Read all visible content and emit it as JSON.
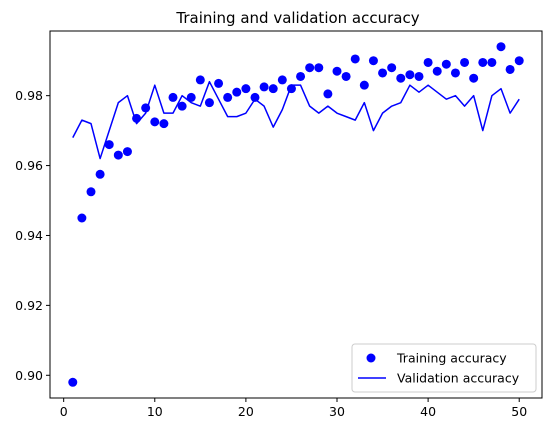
{
  "chart_data": {
    "type": "line",
    "title": "Training and validation accuracy",
    "xlabel": "",
    "ylabel": "",
    "xlim": [
      -1.5,
      52.5
    ],
    "ylim": [
      0.8935,
      0.9985
    ],
    "x_ticks": [
      0,
      10,
      20,
      30,
      40,
      50
    ],
    "y_ticks": [
      0.9,
      0.92,
      0.94,
      0.96,
      0.98
    ],
    "legend_position": "lower-right",
    "grid": false,
    "series": [
      {
        "name": "Training accuracy",
        "style": "markers",
        "color": "#0000ff",
        "x": [
          1,
          2,
          3,
          4,
          5,
          6,
          7,
          8,
          9,
          10,
          11,
          12,
          13,
          14,
          15,
          16,
          17,
          18,
          19,
          20,
          21,
          22,
          23,
          24,
          25,
          26,
          27,
          28,
          29,
          30,
          31,
          32,
          33,
          34,
          35,
          36,
          37,
          38,
          39,
          40,
          41,
          42,
          43,
          44,
          45,
          46,
          47,
          48,
          49,
          50
        ],
        "y": [
          0.898,
          0.945,
          0.9525,
          0.9575,
          0.966,
          0.963,
          0.964,
          0.9735,
          0.9765,
          0.9725,
          0.972,
          0.9795,
          0.977,
          0.9795,
          0.9845,
          0.978,
          0.9835,
          0.9795,
          0.981,
          0.982,
          0.9795,
          0.9825,
          0.982,
          0.9845,
          0.982,
          0.9855,
          0.988,
          0.988,
          0.9805,
          0.987,
          0.9855,
          0.9905,
          0.983,
          0.99,
          0.9865,
          0.988,
          0.985,
          0.986,
          0.9855,
          0.9895,
          0.987,
          0.989,
          0.9865,
          0.9895,
          0.985,
          0.9895,
          0.9895,
          0.994,
          0.9875,
          0.99
        ]
      },
      {
        "name": "Validation accuracy",
        "style": "line",
        "color": "#0000ff",
        "x": [
          1,
          2,
          3,
          4,
          5,
          6,
          7,
          8,
          9,
          10,
          11,
          12,
          13,
          14,
          15,
          16,
          17,
          18,
          19,
          20,
          21,
          22,
          23,
          24,
          25,
          26,
          27,
          28,
          29,
          30,
          31,
          32,
          33,
          34,
          35,
          36,
          37,
          38,
          39,
          40,
          41,
          42,
          43,
          44,
          45,
          46,
          47,
          48,
          49,
          50
        ],
        "y": [
          0.968,
          0.973,
          0.972,
          0.962,
          0.97,
          0.978,
          0.98,
          0.972,
          0.975,
          0.983,
          0.975,
          0.975,
          0.98,
          0.978,
          0.977,
          0.984,
          0.979,
          0.974,
          0.974,
          0.975,
          0.979,
          0.977,
          0.971,
          0.976,
          0.983,
          0.983,
          0.977,
          0.975,
          0.977,
          0.975,
          0.974,
          0.973,
          0.978,
          0.97,
          0.975,
          0.977,
          0.978,
          0.983,
          0.981,
          0.983,
          0.981,
          0.979,
          0.98,
          0.977,
          0.98,
          0.97,
          0.98,
          0.982,
          0.975,
          0.979
        ]
      }
    ]
  }
}
